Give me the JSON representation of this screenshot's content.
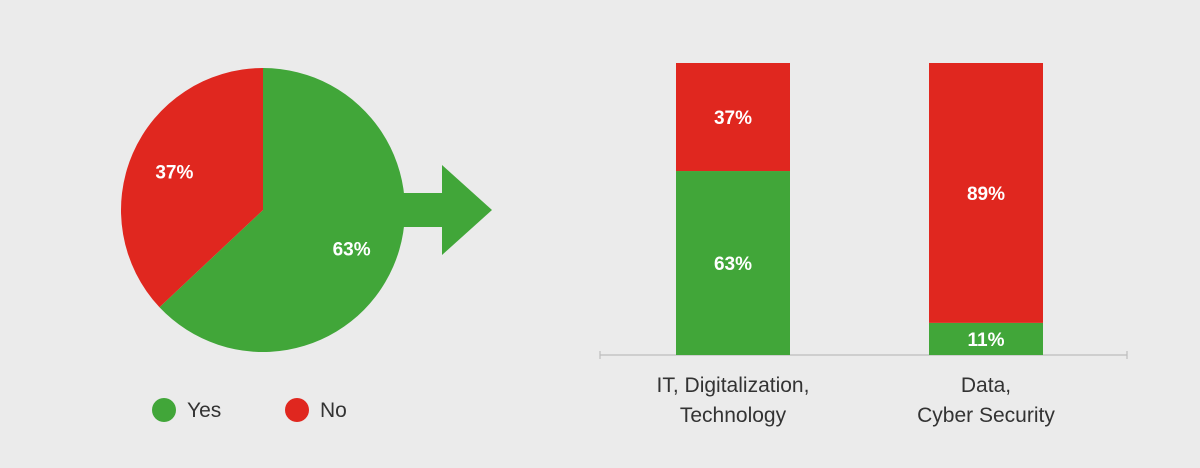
{
  "colors": {
    "yes": "#41a639",
    "no": "#e0271f",
    "background": "#ebebeb",
    "axis": "#bdbdbd",
    "text": "#333333"
  },
  "legend": [
    {
      "label": "Yes",
      "color": "#41a639"
    },
    {
      "label": "No",
      "color": "#e0271f"
    }
  ],
  "chart_data": [
    {
      "type": "pie",
      "title": "",
      "slices": [
        {
          "label": "Yes",
          "value": 63,
          "display": "63%"
        },
        {
          "label": "No",
          "value": 37,
          "display": "37%"
        }
      ]
    },
    {
      "type": "bar",
      "stacked": true,
      "title": "",
      "xlabel": "",
      "ylabel": "",
      "ylim": [
        0,
        100
      ],
      "categories": [
        [
          "IT, Digitalization,",
          "Technology"
        ],
        [
          "Data,",
          "Cyber Security"
        ]
      ],
      "series": [
        {
          "name": "Yes",
          "values": [
            63,
            11
          ],
          "labels": [
            "63%",
            "11%"
          ]
        },
        {
          "name": "No",
          "values": [
            37,
            89
          ],
          "labels": [
            "37%",
            "89%"
          ]
        }
      ],
      "grid": false
    }
  ]
}
